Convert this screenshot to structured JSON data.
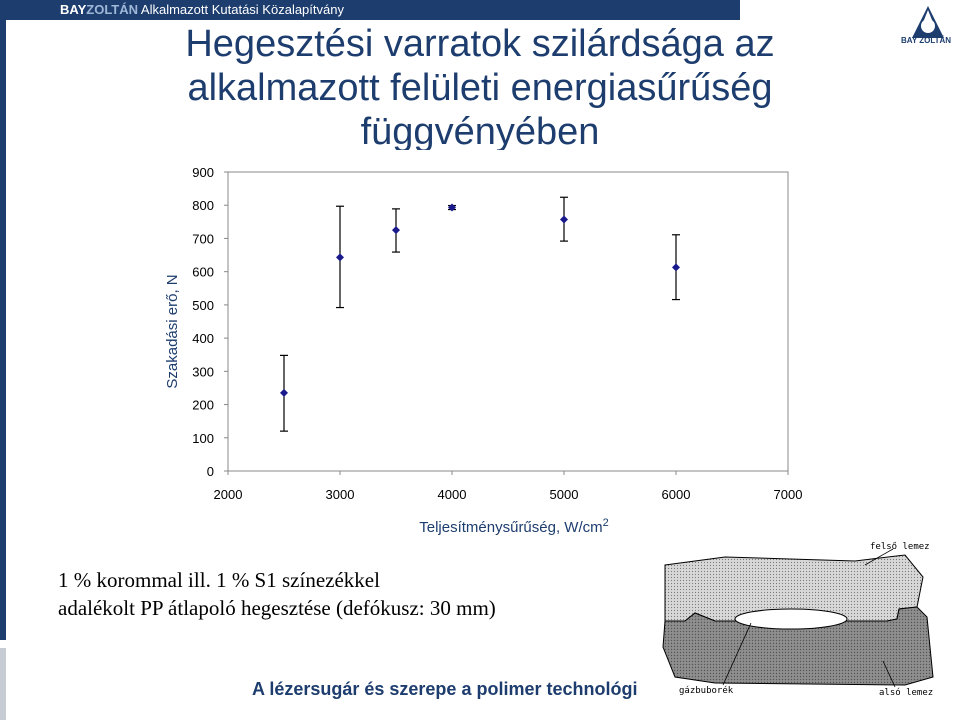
{
  "header": {
    "brand_bold": "BAY",
    "brand_accent": "ZOLTÁN",
    "org_rest": "Alkalmazott Kutatási Közalapítvány",
    "logo_text": "BAY ZOLTÁN",
    "bar_color": "#1d3d6e"
  },
  "slide": {
    "title": "Hegesztési varratok szilárdsága az alkalmazott felületi energiasűrűség függvényében",
    "caption_line1": "1 % korommal ill. 1 % S1 színezékkel",
    "caption_line2": "adalékolt PP átlapoló hegesztése (defókusz: 30 mm)",
    "footer": "A lézersugár és szerepe a polimer technológi"
  },
  "chart_data": {
    "type": "scatter",
    "xlabel": "Teljesítménysűrűség, W/cm",
    "xlabel_sup": "2",
    "ylabel": "Szakadási erő, N",
    "xlim": [
      2000,
      7000
    ],
    "ylim": [
      0,
      900
    ],
    "xticks": [
      2000,
      3000,
      4000,
      5000,
      6000,
      7000
    ],
    "yticks": [
      0,
      100,
      200,
      300,
      400,
      500,
      600,
      700,
      800,
      900
    ],
    "grid": false,
    "marker_color": "#1a1a8c",
    "points": [
      {
        "x": 2500,
        "y": 235,
        "low": 120,
        "high": 348
      },
      {
        "x": 3000,
        "y": 643,
        "low": 492,
        "high": 797
      },
      {
        "x": 3500,
        "y": 725,
        "low": 659,
        "high": 789
      },
      {
        "x": 4000,
        "y": 793,
        "low": 787,
        "high": 799
      },
      {
        "x": 5000,
        "y": 757,
        "low": 692,
        "high": 824
      },
      {
        "x": 6000,
        "y": 613,
        "low": 516,
        "high": 711
      }
    ]
  },
  "diagram": {
    "label_top": "felső lemez",
    "label_bubble": "gázbuborék",
    "label_bottom": "alsó lemez"
  }
}
